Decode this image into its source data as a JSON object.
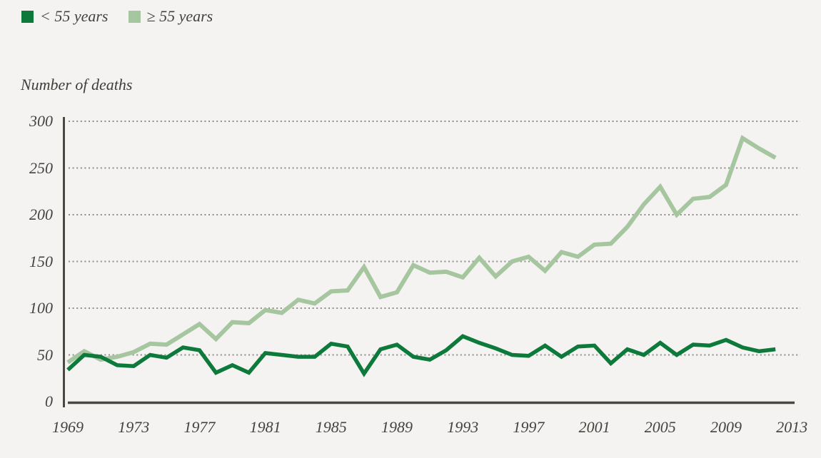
{
  "page": {
    "background": "#f4f3f1",
    "text_color": "#454340",
    "axis_color": "#4b4843",
    "gridline_color": "#908e8a"
  },
  "legend": {
    "items": [
      {
        "label": "< 55 years",
        "color": "#0d7a3c"
      },
      {
        "label": "≥ 55 years",
        "color": "#a6c6a0"
      }
    ]
  },
  "chart_data": {
    "type": "line",
    "title": "Number of deaths",
    "xlabel": "",
    "ylabel": "Number of deaths",
    "x": [
      1969,
      1970,
      1971,
      1972,
      1973,
      1974,
      1975,
      1976,
      1977,
      1978,
      1979,
      1980,
      1981,
      1982,
      1983,
      1984,
      1985,
      1986,
      1987,
      1988,
      1989,
      1990,
      1991,
      1992,
      1993,
      1994,
      1995,
      1996,
      1997,
      1998,
      1999,
      2000,
      2001,
      2002,
      2003,
      2004,
      2005,
      2006,
      2007,
      2008,
      2009,
      2010,
      2011,
      2012
    ],
    "series": [
      {
        "name": "< 55 years",
        "color": "#0d7a3c",
        "values": [
          34,
          50,
          48,
          39,
          38,
          50,
          47,
          58,
          55,
          31,
          39,
          31,
          52,
          50,
          48,
          48,
          62,
          59,
          30,
          56,
          61,
          48,
          45,
          55,
          70,
          63,
          57,
          50,
          49,
          60,
          48,
          59,
          60,
          41,
          56,
          50,
          63,
          50,
          61,
          60,
          66,
          58,
          54,
          56
        ]
      },
      {
        "name": "≥ 55 years",
        "color": "#a6c6a0",
        "values": [
          42,
          54,
          45,
          48,
          53,
          62,
          61,
          72,
          83,
          67,
          85,
          84,
          98,
          95,
          109,
          105,
          118,
          119,
          144,
          112,
          117,
          146,
          138,
          139,
          133,
          154,
          134,
          150,
          155,
          140,
          160,
          155,
          168,
          169,
          187,
          211,
          230,
          200,
          217,
          219,
          232,
          282,
          271,
          261
        ]
      }
    ],
    "xticks": [
      1969,
      1973,
      1977,
      1981,
      1985,
      1989,
      1993,
      1997,
      2001,
      2005,
      2009,
      2013
    ],
    "yticks": [
      0,
      50,
      100,
      150,
      200,
      250,
      300
    ],
    "xlim": [
      1969,
      2013
    ],
    "ylim": [
      0,
      300
    ],
    "grid": "horizontal-dotted",
    "legend_position": "top-left"
  }
}
